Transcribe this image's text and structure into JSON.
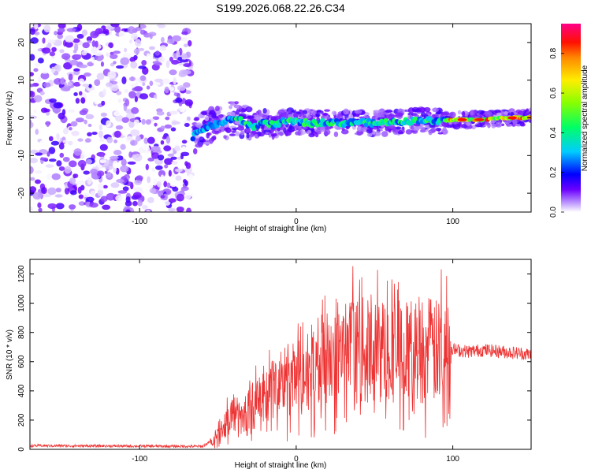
{
  "title": "S199.2026.068.22.26.C34",
  "colors": {
    "snr_line": "#ee3333",
    "trace_low": "#6a00ff",
    "axis": "#000000"
  },
  "chart_data": [
    {
      "type": "heatmap",
      "name": "spectrogram",
      "xlabel": "Height of straight line (km)",
      "ylabel": "Frequency (Hz)",
      "xlim": [
        -170,
        150
      ],
      "ylim": [
        -25,
        25
      ],
      "x_ticks": [
        -100,
        0,
        100
      ],
      "x_tick_labels": [
        "-100",
        "0",
        "100"
      ],
      "y_ticks": [
        -20,
        -10,
        0,
        10,
        20
      ],
      "y_tick_labels": [
        "-20",
        "-10",
        "0",
        "10",
        "20"
      ],
      "noise_region_x": [
        -170,
        -67
      ],
      "signal_track": [
        {
          "x": -66,
          "y": -5
        },
        {
          "x": -60,
          "y": -3
        },
        {
          "x": -54,
          "y": -2
        },
        {
          "x": -48,
          "y": -1.5
        },
        {
          "x": -40,
          "y": 0
        },
        {
          "x": -34,
          "y": -1
        },
        {
          "x": -28,
          "y": -2.5
        },
        {
          "x": -20,
          "y": -1
        },
        {
          "x": -14,
          "y": -2
        },
        {
          "x": -8,
          "y": -1
        },
        {
          "x": 0,
          "y": -1
        },
        {
          "x": 10,
          "y": -1.5
        },
        {
          "x": 20,
          "y": -1
        },
        {
          "x": 30,
          "y": -1.5
        },
        {
          "x": 40,
          "y": -1
        },
        {
          "x": 50,
          "y": -1.5
        },
        {
          "x": 60,
          "y": -1
        },
        {
          "x": 70,
          "y": -1
        },
        {
          "x": 80,
          "y": -0.5
        },
        {
          "x": 90,
          "y": -1
        },
        {
          "x": 100,
          "y": -0.5
        },
        {
          "x": 110,
          "y": -0.5
        },
        {
          "x": 120,
          "y": -0.5
        },
        {
          "x": 130,
          "y": 0
        },
        {
          "x": 140,
          "y": 0
        },
        {
          "x": 150,
          "y": 0
        }
      ],
      "colorbar": {
        "label": "Normalized spectral amplitude",
        "range": [
          0,
          0.95
        ],
        "ticks": [
          0.0,
          0.2,
          0.4,
          0.6,
          0.8
        ],
        "tick_labels": [
          "0.0",
          "0.2",
          "0.4",
          "0.6",
          "0.8"
        ]
      }
    },
    {
      "type": "line",
      "name": "snr",
      "xlabel": "Height of straight line (km)",
      "ylabel": "SNR (10 * v/v)",
      "xlim": [
        -170,
        150
      ],
      "ylim": [
        0,
        1300
      ],
      "x_ticks": [
        -100,
        0,
        100
      ],
      "x_tick_labels": [
        "-100",
        "0",
        "100"
      ],
      "y_ticks": [
        0,
        200,
        400,
        600,
        800,
        1000,
        1200
      ],
      "y_tick_labels": [
        "0",
        "200",
        "400",
        "600",
        "800",
        "1000",
        "1200"
      ],
      "series": [
        {
          "name": "SNR",
          "x": [
            -170,
            -100,
            -60,
            -52,
            -45,
            -40,
            -35,
            -28,
            -20,
            -10,
            0,
            10,
            20,
            30,
            40,
            50,
            60,
            70,
            80,
            90,
            99,
            101,
            110,
            120,
            130,
            140,
            150
          ],
          "y": [
            25,
            22,
            20,
            70,
            180,
            260,
            200,
            300,
            340,
            460,
            480,
            560,
            620,
            650,
            680,
            650,
            700,
            660,
            700,
            660,
            700,
            680,
            670,
            680,
            670,
            660,
            650
          ]
        }
      ]
    }
  ]
}
